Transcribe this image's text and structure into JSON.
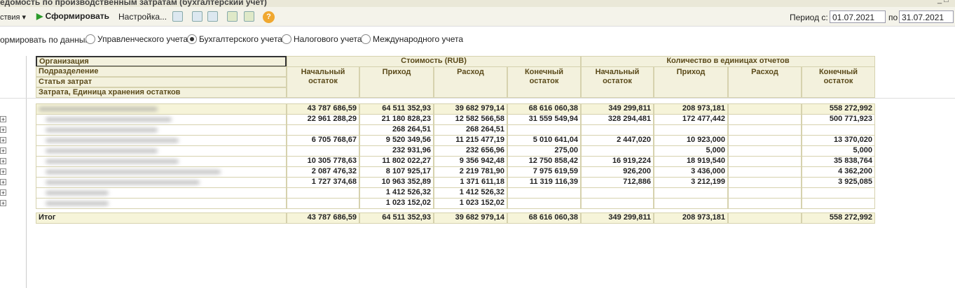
{
  "window": {
    "title": "едомость по производственным затратам (бухгалтерский учет)"
  },
  "toolbar": {
    "actions": "ствия",
    "generate": "Сформировать",
    "settings": "Настройка...",
    "help": "?",
    "period_from_label": "Период с:",
    "period_from": "01.07.2021",
    "period_to_label": "по",
    "period_to": "31.07.2021"
  },
  "options": {
    "label": "ормировать по данным:",
    "radios": [
      {
        "label": "Управленческого учета",
        "checked": false
      },
      {
        "label": "Бухгалтерского учета",
        "checked": true
      },
      {
        "label": "Налогового учета",
        "checked": false
      },
      {
        "label": "Международного учета",
        "checked": false
      }
    ]
  },
  "table": {
    "row_headers": [
      "Организация",
      "Подразделение",
      "Статья затрат",
      "Затрата, Единица хранения остатков"
    ],
    "groups": [
      {
        "title": "Стоимость (RUB)",
        "columns": [
          "Начальный остаток",
          "Приход",
          "Расход",
          "Конечный остаток"
        ]
      },
      {
        "title": "Количество в единицах отчетов",
        "columns": [
          "Начальный остаток",
          "Приход",
          "Расход",
          "Конечный остаток"
        ]
      }
    ],
    "rows": [
      [
        "43 787 686,59",
        "64 511 352,93",
        "39 682 979,14",
        "68 616 060,38",
        "349 299,811",
        "208 973,181",
        null,
        "558 272,992"
      ],
      [
        "22 961 288,29",
        "21 180 828,23",
        "12 582 566,58",
        "31 559 549,94",
        "328 294,481",
        "172 477,442",
        null,
        "500 771,923"
      ],
      [
        null,
        "268 264,51",
        "268 264,51",
        null,
        null,
        null,
        null,
        null
      ],
      [
        "6 705 768,67",
        "9 520 349,56",
        "11 215 477,19",
        "5 010 641,04",
        "2 447,020",
        "10 923,000",
        null,
        "13 370,020"
      ],
      [
        null,
        "232 931,96",
        "232 656,96",
        "275,00",
        null,
        "5,000",
        null,
        "5,000"
      ],
      [
        "10 305 778,63",
        "11 802 022,27",
        "9 356 942,48",
        "12 750 858,42",
        "16 919,224",
        "18 919,540",
        null,
        "35 838,764"
      ],
      [
        "2 087 476,32",
        "8 107 925,17",
        "2 219 781,90",
        "7 975 619,59",
        "926,200",
        "3 436,000",
        null,
        "4 362,200"
      ],
      [
        "1 727 374,68",
        "10 963 352,89",
        "1 371 611,18",
        "11 319 116,39",
        "712,886",
        "3 212,199",
        null,
        "3 925,085"
      ],
      [
        null,
        "1 412 526,32",
        "1 412 526,32",
        null,
        null,
        null,
        null,
        null
      ],
      [
        null,
        "1 023 152,02",
        "1 023 152,02",
        null,
        null,
        null,
        null,
        null
      ]
    ],
    "total": {
      "label": "Итог",
      "values": [
        "43 787 686,59",
        "64 511 352,93",
        "39 682 979,14",
        "68 616 060,38",
        "349 299,811",
        "208 973,181",
        null,
        "558 272,992"
      ]
    }
  }
}
